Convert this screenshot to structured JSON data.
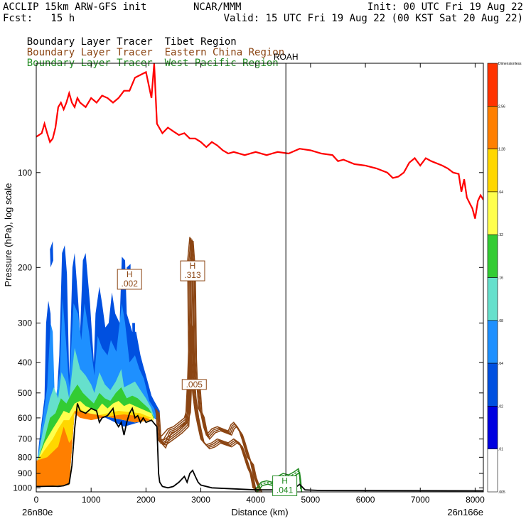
{
  "header": {
    "line1_left": "ACCLIP 15km ARW-GFS init",
    "line1_center": "NCAR/MMM",
    "line1_right": "Init: 00 UTC Fri 19 Aug 22",
    "line2_left": "Fcst:   15 h",
    "line2_right": "Valid: 15 UTC Fri 19 Aug 22 (00 KST Sat 20 Aug 22)"
  },
  "legend": [
    {
      "prefix": "Boundary Layer Tracer",
      "region": "Tibet Region",
      "color": "#000000"
    },
    {
      "prefix": "Boundary Layer Tracer",
      "region": "Eastern China Region",
      "color": "#8B4513"
    },
    {
      "prefix": "Boundary Layer Tracer",
      "region": "West Pacific Region",
      "color": "#228B22"
    }
  ],
  "station_label": "ROAH",
  "chart_data": {
    "type": "contour cross-section",
    "xlabel": "Distance (km)",
    "ylabel": "Pressure (hPa), log scale",
    "x_left_label": "26n80e",
    "x_right_label": "26n166e",
    "xlim": [
      0,
      8150
    ],
    "ylim_hPa": [
      1030,
      45
    ],
    "x_ticks": [
      "0",
      "1000",
      "2000",
      "3000",
      "4000",
      "5000",
      "6000",
      "7000",
      "8000"
    ],
    "y_ticks": [
      "100",
      "200",
      "300",
      "400",
      "500",
      "600",
      "700",
      "800",
      "900",
      "1000"
    ],
    "station_x_km": 4550,
    "colorbar": {
      "title": "Dimensionless",
      "labels": [
        "2.56",
        "1.28",
        ".64",
        ".32",
        ".16",
        ".08",
        ".04",
        ".02",
        ".01",
        ".005"
      ],
      "colors": [
        "#FF3300",
        "#FF7F00",
        "#FFD700",
        "#FFFF4D",
        "#33CC33",
        "#66E0CC",
        "#1E90FF",
        "#0050E0",
        "#0000E0",
        "#FFFFFF"
      ]
    },
    "terrain_line": {
      "color": "#000000",
      "points": [
        [
          0,
          990
        ],
        [
          100,
          990
        ],
        [
          300,
          988
        ],
        [
          400,
          990
        ],
        [
          500,
          985
        ],
        [
          600,
          970
        ],
        [
          650,
          850
        ],
        [
          700,
          650
        ],
        [
          750,
          540
        ],
        [
          800,
          570
        ],
        [
          900,
          580
        ],
        [
          1000,
          560
        ],
        [
          1100,
          570
        ],
        [
          1150,
          620
        ],
        [
          1200,
          600
        ],
        [
          1300,
          590
        ],
        [
          1400,
          560
        ],
        [
          1450,
          620
        ],
        [
          1500,
          640
        ],
        [
          1550,
          620
        ],
        [
          1600,
          680
        ],
        [
          1650,
          620
        ],
        [
          1700,
          580
        ],
        [
          1750,
          560
        ],
        [
          1800,
          600
        ],
        [
          1850,
          590
        ],
        [
          1900,
          620
        ],
        [
          1950,
          600
        ],
        [
          2000,
          620
        ],
        [
          2100,
          610
        ],
        [
          2200,
          640
        ],
        [
          2230,
          900
        ],
        [
          2250,
          960
        ],
        [
          2300,
          990
        ],
        [
          2400,
          1000
        ],
        [
          2500,
          990
        ],
        [
          2600,
          960
        ],
        [
          2700,
          920
        ],
        [
          2750,
          960
        ],
        [
          2800,
          900
        ],
        [
          2850,
          880
        ],
        [
          2900,
          920
        ],
        [
          2950,
          960
        ],
        [
          3000,
          980
        ],
        [
          3200,
          1000
        ],
        [
          4000,
          1015
        ],
        [
          4500,
          1015
        ],
        [
          4700,
          1005
        ],
        [
          4800,
          975
        ],
        [
          4900,
          1015
        ],
        [
          5200,
          1020
        ],
        [
          8150,
          1022
        ]
      ]
    },
    "tropopause_line": {
      "color": "#FF0000",
      "points": [
        [
          0,
          77
        ],
        [
          100,
          75
        ],
        [
          150,
          70
        ],
        [
          200,
          75
        ],
        [
          250,
          80
        ],
        [
          300,
          78
        ],
        [
          350,
          72
        ],
        [
          400,
          62
        ],
        [
          450,
          60
        ],
        [
          500,
          63
        ],
        [
          550,
          60
        ],
        [
          600,
          56
        ],
        [
          650,
          60
        ],
        [
          700,
          62
        ],
        [
          750,
          58
        ],
        [
          800,
          60
        ],
        [
          900,
          62
        ],
        [
          1000,
          58
        ],
        [
          1100,
          60
        ],
        [
          1200,
          57
        ],
        [
          1300,
          58
        ],
        [
          1400,
          60
        ],
        [
          1500,
          58
        ],
        [
          1600,
          55
        ],
        [
          1700,
          55
        ],
        [
          1800,
          50
        ],
        [
          1900,
          49
        ],
        [
          2000,
          48
        ],
        [
          2100,
          58
        ],
        [
          2150,
          45
        ],
        [
          2200,
          70
        ],
        [
          2300,
          75
        ],
        [
          2400,
          72
        ],
        [
          2500,
          74
        ],
        [
          2600,
          76
        ],
        [
          2700,
          75
        ],
        [
          2800,
          78
        ],
        [
          2900,
          78
        ],
        [
          3000,
          80
        ],
        [
          3100,
          83
        ],
        [
          3200,
          80
        ],
        [
          3300,
          82
        ],
        [
          3400,
          85
        ],
        [
          3500,
          87
        ],
        [
          3600,
          86
        ],
        [
          3800,
          88
        ],
        [
          4000,
          86
        ],
        [
          4200,
          88
        ],
        [
          4400,
          86
        ],
        [
          4600,
          87
        ],
        [
          4800,
          84
        ],
        [
          5000,
          85
        ],
        [
          5200,
          87
        ],
        [
          5400,
          88
        ],
        [
          5500,
          92
        ],
        [
          5600,
          91
        ],
        [
          5800,
          94
        ],
        [
          6000,
          95
        ],
        [
          6200,
          97
        ],
        [
          6400,
          100
        ],
        [
          6500,
          104
        ],
        [
          6600,
          103
        ],
        [
          6700,
          100
        ],
        [
          6800,
          93
        ],
        [
          6900,
          90
        ],
        [
          7000,
          95
        ],
        [
          7100,
          90
        ],
        [
          7200,
          92
        ],
        [
          7400,
          95
        ],
        [
          7500,
          97
        ],
        [
          7600,
          100
        ],
        [
          7700,
          101
        ],
        [
          7750,
          115
        ],
        [
          7800,
          105
        ],
        [
          7850,
          120
        ],
        [
          7900,
          125
        ],
        [
          7950,
          130
        ],
        [
          8000,
          140
        ],
        [
          8050,
          123
        ],
        [
          8100,
          118
        ],
        [
          8150,
          122
        ]
      ]
    },
    "tibet_tracer": {
      "label": ".002",
      "label_prefix": "H",
      "x_km": 1700,
      "p_hPa": 218
    },
    "eastern_china_tracer": {
      "color": "#8B4513",
      "max_label": ".313",
      "max_label_prefix": "H",
      "max_x_km": 2850,
      "max_p_hPa": 205,
      "min_label": ".005",
      "min_x_km": 2880,
      "min_p_hPa": 470
    },
    "west_pacific_tracer": {
      "color": "#228B22",
      "label": ".041",
      "label_prefix": "H",
      "x_km": 4530,
      "p_hPa": 985
    }
  }
}
